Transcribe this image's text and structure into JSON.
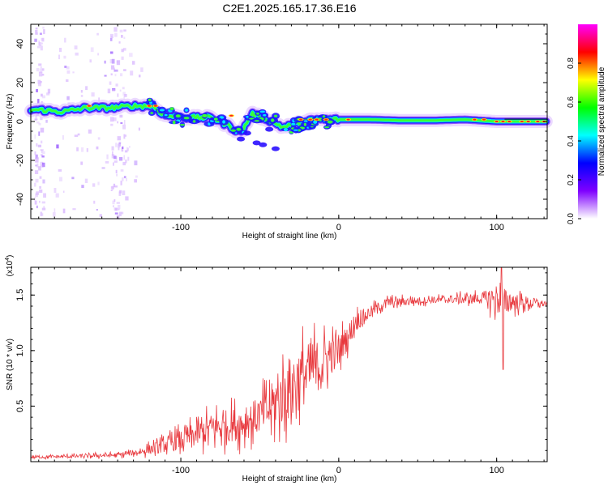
{
  "title": "C2E1.2025.165.17.36.E16",
  "chart_data": [
    {
      "type": "heatmap",
      "xlabel": "Height of straight line (km)",
      "ylabel": "Frequency (Hz)",
      "xlim": [
        -195,
        132
      ],
      "ylim": [
        -50,
        50
      ],
      "xticks": [
        -100,
        0,
        100
      ],
      "yticks": [
        -40,
        -20,
        0,
        20,
        40
      ],
      "ridge": [
        {
          "x": -190,
          "y": 6
        },
        {
          "x": -175,
          "y": 5
        },
        {
          "x": -160,
          "y": 7
        },
        {
          "x": -145,
          "y": 7
        },
        {
          "x": -130,
          "y": 8
        },
        {
          "x": -118,
          "y": 8
        },
        {
          "x": -110,
          "y": 3
        },
        {
          "x": -95,
          "y": 2
        },
        {
          "x": -80,
          "y": 2
        },
        {
          "x": -70,
          "y": -2
        },
        {
          "x": -62,
          "y": -6
        },
        {
          "x": -55,
          "y": 4
        },
        {
          "x": -45,
          "y": 1
        },
        {
          "x": -35,
          "y": -3
        },
        {
          "x": -25,
          "y": -1
        },
        {
          "x": -15,
          "y": 1
        },
        {
          "x": 0,
          "y": 1
        },
        {
          "x": 20,
          "y": 1
        },
        {
          "x": 40,
          "y": 0.5
        },
        {
          "x": 60,
          "y": 0.5
        },
        {
          "x": 80,
          "y": 1
        },
        {
          "x": 100,
          "y": 0
        },
        {
          "x": 132,
          "y": 0
        }
      ],
      "colorbar": {
        "label": "Normalized spectral amplitude",
        "ticks": [
          "0.0",
          "0.2",
          "0.4",
          "0.6",
          "0.8"
        ],
        "colors": [
          "#ffffff",
          "#7f00ff",
          "#0000ff",
          "#00ffff",
          "#00ff00",
          "#ffff00",
          "#ff0000",
          "#ff00ff"
        ]
      }
    },
    {
      "type": "line",
      "xlabel": "Height of straight line (km)",
      "ylabel": "SNR (10 * v/v)",
      "scale_label": "(x10",
      "scale_exp": "4",
      "scale_close": ")",
      "xlim": [
        -195,
        132
      ],
      "ylim": [
        0,
        17500
      ],
      "xticks": [
        -100,
        0,
        100
      ],
      "yticks": [
        0.5,
        1.0,
        1.5
      ],
      "yticklabels": [
        "0.5",
        "1.0",
        "1.5"
      ],
      "color": "#e8383d",
      "envelope": [
        {
          "x": -195,
          "y": 400
        },
        {
          "x": -160,
          "y": 500
        },
        {
          "x": -140,
          "y": 600
        },
        {
          "x": -125,
          "y": 900
        },
        {
          "x": -110,
          "y": 1500
        },
        {
          "x": -95,
          "y": 2200
        },
        {
          "x": -80,
          "y": 3000
        },
        {
          "x": -60,
          "y": 3500
        },
        {
          "x": -45,
          "y": 4500
        },
        {
          "x": -35,
          "y": 6000
        },
        {
          "x": -25,
          "y": 7500
        },
        {
          "x": -15,
          "y": 8500
        },
        {
          "x": -5,
          "y": 9500
        },
        {
          "x": 5,
          "y": 11000
        },
        {
          "x": 10,
          "y": 12500
        },
        {
          "x": 20,
          "y": 13500
        },
        {
          "x": 30,
          "y": 14300
        },
        {
          "x": 50,
          "y": 14500
        },
        {
          "x": 70,
          "y": 14600
        },
        {
          "x": 90,
          "y": 14700
        },
        {
          "x": 100,
          "y": 14600
        },
        {
          "x": 110,
          "y": 14400
        },
        {
          "x": 132,
          "y": 14200
        }
      ],
      "noise": [
        {
          "x": -195,
          "a": 200
        },
        {
          "x": -130,
          "a": 400
        },
        {
          "x": -110,
          "a": 1200
        },
        {
          "x": -80,
          "a": 2500
        },
        {
          "x": -50,
          "a": 3000
        },
        {
          "x": -30,
          "a": 5500
        },
        {
          "x": -15,
          "a": 4500
        },
        {
          "x": 0,
          "a": 2500
        },
        {
          "x": 20,
          "a": 900
        },
        {
          "x": 60,
          "a": 500
        },
        {
          "x": 90,
          "a": 900
        },
        {
          "x": 100,
          "a": 2600
        },
        {
          "x": 110,
          "a": 1500
        },
        {
          "x": 132,
          "a": 400
        }
      ],
      "minimum": {
        "x": 104,
        "y": 8300
      },
      "peak": {
        "x": 103,
        "y": 17500
      }
    }
  ]
}
